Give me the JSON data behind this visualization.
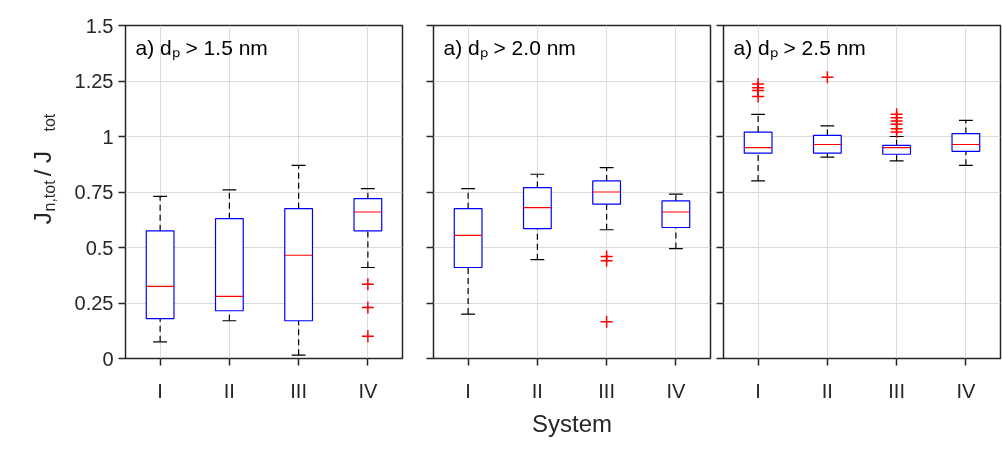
{
  "chart_data": [
    {
      "type": "box",
      "categories": [
        "I",
        "II",
        "III",
        "IV"
      ],
      "ylabel": "J$_{n,tot}$ / J$_{tot}$",
      "annotations": [
        "a)   dₚ > 1.5 nm"
      ],
      "ylim": [
        0,
        1.5
      ],
      "yticks": [
        0,
        0.25,
        0.5,
        0.75,
        1,
        1.25,
        1.5
      ],
      "grid": true,
      "boxes": [
        {
          "low": 0.075,
          "q1": 0.18,
          "median": 0.325,
          "q3": 0.575,
          "high": 0.73
        },
        {
          "low": 0.17,
          "q1": 0.215,
          "median": 0.28,
          "q3": 0.63,
          "high": 0.76
        },
        {
          "low": 0.015,
          "q1": 0.17,
          "median": 0.465,
          "q3": 0.675,
          "high": 0.87
        },
        {
          "low": 0.41,
          "q1": 0.575,
          "median": 0.66,
          "q3": 0.72,
          "high": 0.765,
          "outliers": [
            0.335,
            0.23,
            0.1
          ]
        }
      ]
    },
    {
      "type": "box",
      "categories": [
        "I",
        "II",
        "III",
        "IV"
      ],
      "xlabel": "System",
      "annotations": [
        "a)   dₚ > 2.0 nm"
      ],
      "ylim": [
        0,
        1.5
      ],
      "yticks": [
        0,
        0.25,
        0.5,
        0.75,
        1,
        1.25,
        1.5
      ],
      "grid": true,
      "tick_labels": "x",
      "boxes": [
        {
          "low": 0.2,
          "q1": 0.41,
          "median": 0.555,
          "q3": 0.675,
          "high": 0.765
        },
        {
          "low": 0.445,
          "q1": 0.585,
          "median": 0.68,
          "q3": 0.77,
          "high": 0.83
        },
        {
          "low": 0.58,
          "q1": 0.695,
          "median": 0.75,
          "q3": 0.8,
          "high": 0.86,
          "outliers": [
            0.46,
            0.44,
            0.165
          ]
        },
        {
          "low": 0.495,
          "q1": 0.59,
          "median": 0.66,
          "q3": 0.71,
          "high": 0.74
        }
      ]
    },
    {
      "type": "box",
      "categories": [
        "I",
        "II",
        "III",
        "IV"
      ],
      "annotations": [
        "a)   dₚ > 2.5 nm"
      ],
      "ylim": [
        0,
        1.5
      ],
      "yticks": [
        0,
        0.25,
        0.5,
        0.75,
        1,
        1.25,
        1.5
      ],
      "grid": true,
      "tick_labels": "x",
      "boxes": [
        {
          "low": 0.8,
          "q1": 0.925,
          "median": 0.95,
          "q3": 1.02,
          "high": 1.1,
          "outliers": [
            1.237,
            1.22,
            1.207,
            1.18
          ]
        },
        {
          "low": 0.907,
          "q1": 0.925,
          "median": 0.964,
          "q3": 1.005,
          "high": 1.048,
          "outliers": [
            1.267
          ]
        },
        {
          "low": 0.89,
          "q1": 0.92,
          "median": 0.95,
          "q3": 0.96,
          "high": 1.0,
          "outliers": [
            1.1,
            1.085,
            1.07,
            1.055,
            1.035,
            1.02
          ]
        },
        {
          "low": 0.87,
          "q1": 0.933,
          "median": 0.964,
          "q3": 1.013,
          "high": 1.073
        }
      ]
    }
  ]
}
